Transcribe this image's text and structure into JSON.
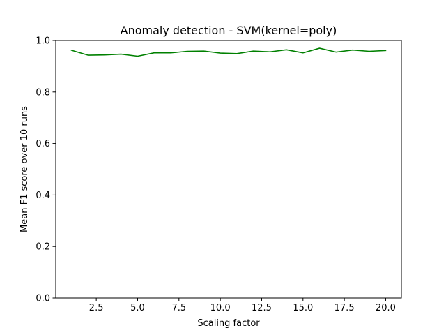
{
  "chart_data": {
    "type": "line",
    "title": "Anomaly detection - SVM(kernel=poly)",
    "xlabel": "Scaling factor",
    "ylabel": "Mean F1 score over 10 runs",
    "xlim": [
      0.05,
      20.95
    ],
    "ylim": [
      0.0,
      1.0
    ],
    "xticks": [
      2.5,
      5.0,
      7.5,
      10.0,
      12.5,
      15.0,
      17.5,
      20.0
    ],
    "xtick_labels": [
      "2.5",
      "5.0",
      "7.5",
      "10.0",
      "12.5",
      "15.0",
      "17.5",
      "20.0"
    ],
    "yticks": [
      0.0,
      0.2,
      0.4,
      0.6,
      0.8,
      1.0
    ],
    "ytick_labels": [
      "0.0",
      "0.2",
      "0.4",
      "0.6",
      "0.8",
      "1.0"
    ],
    "grid": false,
    "legend": "none",
    "series": [
      {
        "color": "#008000",
        "x": [
          1,
          2,
          3,
          4,
          5,
          6,
          7,
          8,
          9,
          10,
          11,
          12,
          13,
          14,
          15,
          16,
          17,
          18,
          19,
          20
        ],
        "y": [
          0.962,
          0.943,
          0.944,
          0.947,
          0.939,
          0.952,
          0.952,
          0.958,
          0.959,
          0.951,
          0.949,
          0.959,
          0.956,
          0.964,
          0.952,
          0.97,
          0.955,
          0.963,
          0.958,
          0.961
        ]
      }
    ]
  }
}
